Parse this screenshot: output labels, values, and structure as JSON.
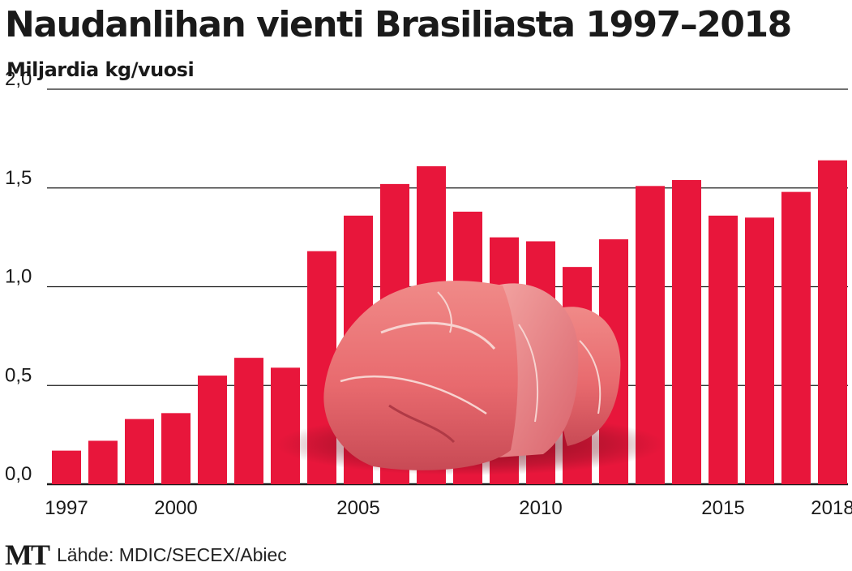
{
  "chart_data": {
    "type": "bar",
    "title": "Naudanlihan vienti Brasiliasta 1997–2018",
    "ylabel": "Miljardia kg/vuosi",
    "x": [
      1997,
      1998,
      1999,
      2000,
      2001,
      2002,
      2003,
      2004,
      2005,
      2006,
      2007,
      2008,
      2009,
      2010,
      2011,
      2012,
      2013,
      2014,
      2015,
      2016,
      2017,
      2018
    ],
    "x_tick_labels": [
      "1997",
      "2000",
      "2005",
      "2010",
      "2015",
      "2018"
    ],
    "values": [
      0.17,
      0.22,
      0.33,
      0.36,
      0.55,
      0.64,
      0.59,
      1.18,
      1.36,
      1.52,
      1.61,
      1.38,
      1.25,
      1.23,
      1.1,
      1.24,
      1.51,
      1.54,
      1.36,
      1.35,
      1.48,
      1.64
    ],
    "ylim": [
      0,
      2.0
    ],
    "y_ticks": [
      0,
      0.5,
      1.0,
      1.5,
      2.0
    ],
    "y_tick_labels": [
      "0,0",
      "0,5",
      "1,0",
      "1,5",
      "2,0"
    ],
    "grid": true,
    "bar_color": "#e8163b"
  },
  "footer": {
    "logo": "MT",
    "source": "Lähde: MDIC/SECEX/Abiec"
  }
}
